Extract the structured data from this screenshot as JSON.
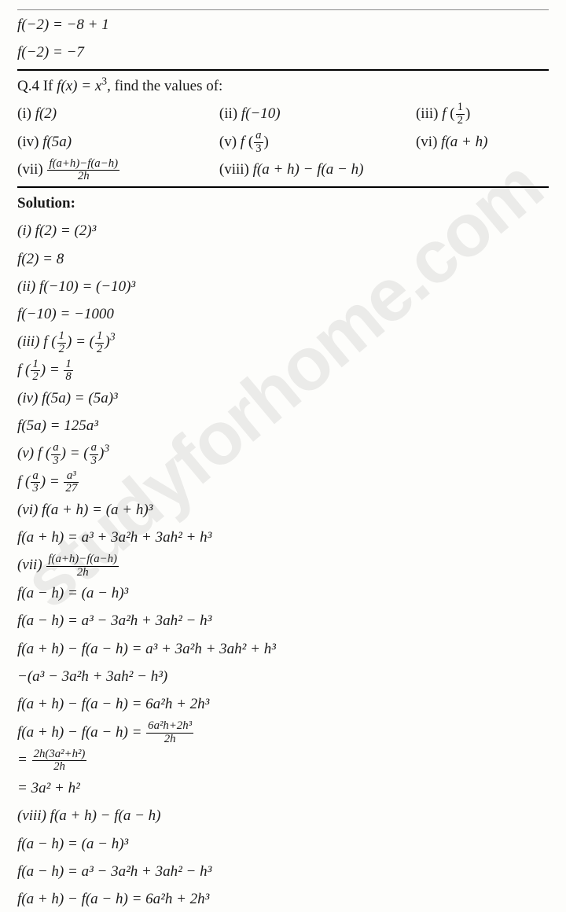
{
  "watermark": "studyforhome.com",
  "pre1": "f(−2) = −8 + 1",
  "pre2": "f(−2) = −7",
  "q_prefix": "Q.4 If ",
  "q_mid": "f(x) = x",
  "q_exp": "3",
  "q_suffix": ", find the values of:",
  "p1_l": "(i) ",
  "p1_f": "f(2)",
  "p2_l": "(ii) ",
  "p2_f": "f(−10)",
  "p3_l": "(iii) ",
  "p3_f": "f",
  "p3_n": "1",
  "p3_d": "2",
  "p4_l": "(iv) ",
  "p4_f": "f(5a)",
  "p5_l": "(v) ",
  "p5_f": "f",
  "p5_n": "a",
  "p5_d": "3",
  "p6_l": "(vi) ",
  "p6_f": "f(a + h)",
  "p7_l": "(vii) ",
  "p7_n": "f(a+h)−f(a−h)",
  "p7_d": "2h",
  "p8_l": "(viii) ",
  "p8_f": "f(a + h) − f(a − h)",
  "sol": "Solution:",
  "s": [
    "(i) f(2) = (2)³",
    "f(2) = 8",
    "(ii) f(−10) = (−10)³",
    "f(−10) = −1000"
  ],
  "s3a_l": "(iii) ",
  "s3a_f": "f",
  "s3a_n": "1",
  "s3a_d": "2",
  "s3a_eq": " = ",
  "s3a_rn": "1",
  "s3a_rd": "2",
  "s3a_exp": "3",
  "s3b_f": "f",
  "s3b_n": "1",
  "s3b_d": "2",
  "s3b_eq": " = ",
  "s3b_rn": "1",
  "s3b_rd": "8",
  "s4": [
    "(iv) f(5a) = (5a)³",
    "f(5a) = 125a³"
  ],
  "s5a_l": "(v) ",
  "s5a_f": "f",
  "s5a_n": "a",
  "s5a_d": "3",
  "s5a_eq": " = ",
  "s5a_rn": "a",
  "s5a_rd": "3",
  "s5a_exp": "3",
  "s5b_f": "f",
  "s5b_n": "a",
  "s5b_d": "3",
  "s5b_eq": " = ",
  "s5b_rn": "a³",
  "s5b_rd": "27",
  "s6": [
    "(vi) f(a + h) = (a + h)³",
    "f(a + h) = a³ + 3a²h + 3ah² + h³"
  ],
  "s7a_l": "(vii) ",
  "s7a_n": "f(a+h)−f(a−h)",
  "s7a_d": "2h",
  "s7b": [
    "f(a − h) = (a − h)³",
    "f(a − h) = a³ − 3a²h + 3ah² − h³",
    "f(a + h) − f(a − h) = a³ + 3a²h + 3ah² + h³",
    "−(a³ − 3a²h + 3ah² − h³)",
    "f(a + h) − f(a − h) = 6a²h + 2h³"
  ],
  "s7c_l": "f(a + h) − f(a − h) = ",
  "s7c_n": "6a²h+2h³",
  "s7c_d": "2h",
  "s7d_l": "= ",
  "s7d_n": "2h(3a²+h²)",
  "s7d_d": "2h",
  "s7e": "= 3a² + h²",
  "s8": [
    "(viii) f(a + h) − f(a − h)",
    "f(a − h) = (a − h)³",
    "f(a − h) = a³ − 3a²h + 3ah² − h³",
    "f(a + h) − f(a − h) = 6a²h + 2h³"
  ]
}
